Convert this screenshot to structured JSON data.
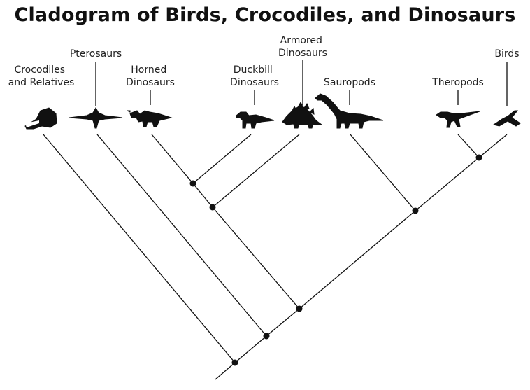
{
  "title": "Cladogram of Birds, Crocodiles, and Dinosaurs",
  "taxa": [
    {
      "id": "crocodiles",
      "label_lines": [
        "Crocodiles",
        "and Relatives"
      ],
      "icon": "crocodile-icon"
    },
    {
      "id": "pterosaurs",
      "label_lines": [
        "Pterosaurs"
      ],
      "icon": "pterosaur-icon"
    },
    {
      "id": "horned",
      "label_lines": [
        "Horned",
        "Dinosaurs"
      ],
      "icon": "triceratops-icon"
    },
    {
      "id": "duckbill",
      "label_lines": [
        "Duckbill",
        "Dinosaurs"
      ],
      "icon": "hadrosaur-icon"
    },
    {
      "id": "armored",
      "label_lines": [
        "Armored",
        "Dinosaurs"
      ],
      "icon": "stegosaurus-icon"
    },
    {
      "id": "sauropods",
      "label_lines": [
        "Sauropods"
      ],
      "icon": "sauropod-icon"
    },
    {
      "id": "theropods",
      "label_lines": [
        "Theropods"
      ],
      "icon": "theropod-icon"
    },
    {
      "id": "birds",
      "label_lines": [
        "Birds"
      ],
      "icon": "bird-icon"
    }
  ],
  "colors": {
    "ink": "#111111",
    "background": "#ffffff"
  }
}
